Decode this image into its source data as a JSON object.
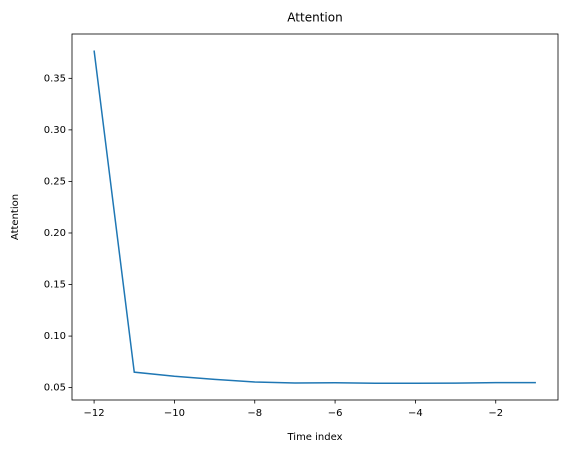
{
  "chart_data": {
    "type": "line",
    "title": "Attention",
    "xlabel": "Time index",
    "ylabel": "Attention",
    "x": [
      -12,
      -11,
      -10,
      -9,
      -8,
      -7,
      -6,
      -5,
      -4,
      -3,
      -2,
      -1
    ],
    "series": [
      {
        "name": "Attention",
        "color": "#1f77b4",
        "values": [
          0.377,
          0.065,
          0.061,
          0.058,
          0.0555,
          0.0545,
          0.0547,
          0.0543,
          0.0542,
          0.0544,
          0.0548,
          0.0548
        ]
      }
    ],
    "xlim": [
      -12.55,
      -0.45
    ],
    "xticks": [
      {
        "value": -12,
        "label": "−12"
      },
      {
        "value": -10,
        "label": "−10"
      },
      {
        "value": -8,
        "label": "−8"
      },
      {
        "value": -6,
        "label": "−6"
      },
      {
        "value": -4,
        "label": "−4"
      },
      {
        "value": -2,
        "label": "−2"
      }
    ],
    "ylim": [
      0.038,
      0.393
    ],
    "yticks": [
      0.05,
      {
        "value": 0.1,
        "label": "0.10"
      },
      0.15,
      {
        "value": 0.2,
        "label": "0.20"
      },
      0.25,
      {
        "value": 0.3,
        "label": "0.30"
      },
      0.35
    ],
    "grid": false
  }
}
